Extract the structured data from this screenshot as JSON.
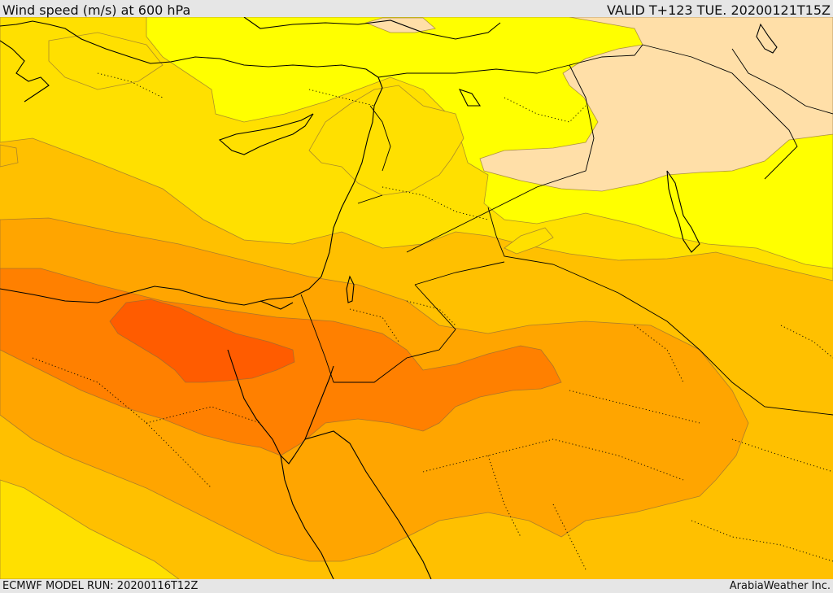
{
  "header": {
    "title": "Wind speed (m/s) at 600 hPa",
    "valid_time": "VALID T+123 TUE. 20200121T15Z"
  },
  "footer": {
    "model_run": "ECMWF MODEL RUN: 20200116T12Z",
    "credit": "ArabiaWeather Inc."
  },
  "map": {
    "variable": "wind speed",
    "units": "m/s",
    "level": "600 hPa",
    "fill_colors": {
      "lowest": "#ffdfa8",
      "low": "#ffff00",
      "low_mid": "#ffe000",
      "mid": "#ffc000",
      "mid_high": "#ffa500",
      "high": "#ff8000",
      "highest": "#ff5c00"
    }
  }
}
